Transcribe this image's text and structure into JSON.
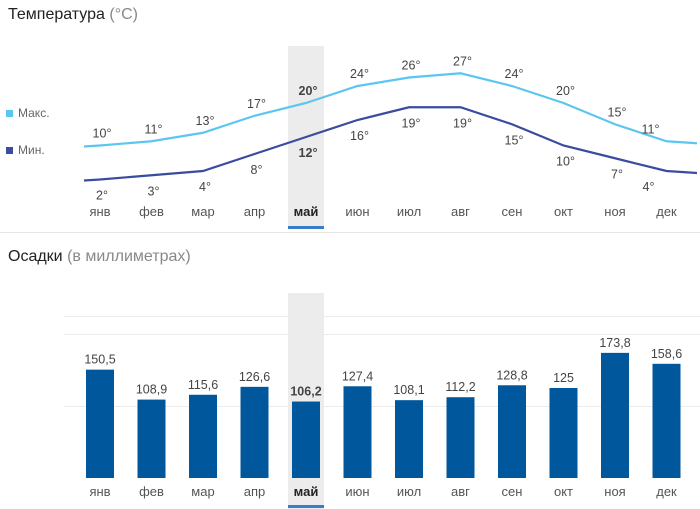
{
  "temperature": {
    "title": "Температура",
    "unit": "(°C)",
    "legend": [
      {
        "label": "Макс.",
        "color": "#5bc6f0"
      },
      {
        "label": "Мин.",
        "color": "#3a4ca0"
      }
    ]
  },
  "precipitation": {
    "title": "Осадки",
    "unit": "(в миллиметрах)",
    "bar_color": "#00579c"
  },
  "highlight": {
    "month_index": 4,
    "band_color": "#ececec",
    "underline_color": "#3a7cc8"
  },
  "chart_data": [
    {
      "type": "line",
      "title": "Температура (°C)",
      "categories": [
        "янв",
        "фев",
        "мар",
        "апр",
        "май",
        "июн",
        "июл",
        "авг",
        "сен",
        "окт",
        "ноя",
        "дек"
      ],
      "series": [
        {
          "name": "Макс.",
          "color": "#5bc6f0",
          "values": [
            10,
            11,
            13,
            17,
            20,
            24,
            26,
            27,
            24,
            20,
            15,
            11
          ],
          "labels": [
            "10°",
            "11°",
            "13°",
            "17°",
            "20°",
            "24°",
            "26°",
            "27°",
            "24°",
            "20°",
            "15°",
            "11°"
          ]
        },
        {
          "name": "Мин.",
          "color": "#3a4ca0",
          "values": [
            2,
            3,
            4,
            8,
            12,
            16,
            19,
            19,
            15,
            10,
            7,
            4
          ],
          "labels": [
            "2°",
            "3°",
            "4°",
            "8°",
            "12°",
            "16°",
            "19°",
            "19°",
            "15°",
            "10°",
            "7°",
            "4°"
          ]
        }
      ],
      "ylim": [
        0,
        30
      ],
      "grid": false
    },
    {
      "type": "bar",
      "title": "Осадки (в миллиметрах)",
      "categories": [
        "янв",
        "фев",
        "мар",
        "апр",
        "май",
        "июн",
        "июл",
        "авг",
        "сен",
        "окт",
        "ноя",
        "дек"
      ],
      "values": [
        150.5,
        108.9,
        115.6,
        126.6,
        106.2,
        127.4,
        108.1,
        112.2,
        128.8,
        125,
        173.8,
        158.6
      ],
      "labels": [
        "150,5",
        "108,9",
        "115,6",
        "126,6",
        "106,2",
        "127,4",
        "108,1",
        "112,2",
        "128,8",
        "125",
        "173,8",
        "158,6"
      ],
      "ylim": [
        0,
        300
      ],
      "grid": true
    }
  ]
}
